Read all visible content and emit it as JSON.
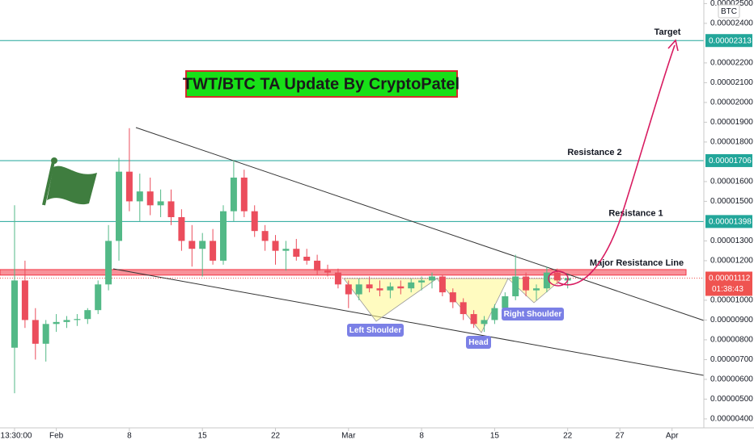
{
  "chart_data": {
    "type": "candlestick",
    "title": "TWT/BTC TA Update By CryptoPatel",
    "currency": "BTC",
    "categories": [
      "13:30:00",
      null,
      null,
      null,
      "Feb",
      null,
      null,
      null,
      null,
      null,
      null,
      "8",
      null,
      null,
      null,
      null,
      null,
      null,
      "15",
      null,
      null,
      null,
      null,
      null,
      null,
      "22",
      null,
      null,
      null,
      null,
      null,
      null,
      "Mar",
      null,
      null,
      null,
      null,
      null,
      null,
      "8",
      null,
      null,
      null,
      null,
      null,
      null,
      "15",
      null,
      null,
      null,
      null,
      null,
      null,
      "22",
      null,
      null,
      null,
      null,
      "27",
      null,
      null,
      null,
      null,
      "Apr",
      null
    ],
    "open": [
      7.6e-06,
      1.1e-05,
      9e-06,
      7.8e-06,
      8.8e-06,
      8.9e-06,
      9e-06,
      9.05e-06,
      9.5e-06,
      1.08e-05,
      1.3e-05,
      1.65e-05,
      1.5e-05,
      1.55e-05,
      1.48e-05,
      1.5e-05,
      1.42e-05,
      1.3e-05,
      1.26e-05,
      1.3e-05,
      1.2e-05,
      1.45e-05,
      1.62e-05,
      1.45e-05,
      1.35e-05,
      1.3e-05,
      1.25e-05,
      1.26e-05,
      1.22e-05,
      1.2e-05,
      1.15e-05,
      1.14e-05,
      1.08e-05,
      1.03e-05,
      1.08e-05,
      1.06e-05,
      1.05e-05,
      1.07e-05,
      1.06e-05,
      1.09e-05,
      1.1e-05,
      1.12e-05,
      1.04e-05,
      9.9e-06,
      9.3e-06,
      8.8e-06,
      9e-06,
      9.6e-06,
      1.02e-05,
      1.12e-05,
      1.05e-05,
      1.06e-05,
      1.14e-05,
      1.1e-05,
      null,
      null,
      null,
      null,
      null,
      null,
      null,
      null,
      null,
      null,
      null
    ],
    "high": [
      1.48e-05,
      1.2e-05,
      9.6e-06,
      9e-06,
      9.3e-06,
      9.2e-06,
      9.3e-06,
      9.6e-06,
      1.1e-05,
      1.38e-05,
      1.72e-05,
      1.87e-05,
      1.64e-05,
      1.62e-05,
      1.56e-05,
      1.56e-05,
      1.46e-05,
      1.38e-05,
      1.34e-05,
      1.36e-05,
      1.48e-05,
      1.71e-05,
      1.66e-05,
      1.48e-05,
      1.38e-05,
      1.33e-05,
      1.3e-05,
      1.31e-05,
      1.26e-05,
      1.23e-05,
      1.18e-05,
      1.16e-05,
      1.1e-05,
      1.11e-05,
      1.12e-05,
      1.1e-05,
      1.09e-05,
      1.1e-05,
      1.11e-05,
      1.12e-05,
      1.14e-05,
      1.13e-05,
      1.06e-05,
      1.01e-05,
      9.5e-06,
      9.2e-06,
      9.8e-06,
      1.04e-05,
      1.23e-05,
      1.14e-05,
      1.08e-05,
      1.17e-05,
      1.16e-05,
      1.13e-05,
      null,
      null,
      null,
      null,
      null,
      null,
      null,
      null,
      null,
      null,
      null
    ],
    "low": [
      5.3e-06,
      8.6e-06,
      7e-06,
      6.9e-06,
      8.4e-06,
      8.6e-06,
      8.7e-06,
      8.8e-06,
      9.3e-06,
      1.05e-05,
      1.2e-05,
      1.45e-05,
      1.4e-05,
      1.43e-05,
      1.42e-05,
      1.38e-05,
      1.25e-05,
      1.17e-05,
      1.12e-05,
      1.18e-05,
      1.18e-05,
      1.4e-05,
      1.42e-05,
      1.32e-05,
      1.25e-05,
      1.18e-05,
      1.15e-05,
      1.2e-05,
      1.18e-05,
      1.13e-05,
      1.12e-05,
      1.06e-05,
      9.6e-06,
      1e-05,
      1.04e-05,
      1.02e-05,
      1.01e-05,
      1.03e-05,
      1.04e-05,
      1.05e-05,
      1.06e-05,
      1.02e-05,
      9.6e-06,
      9e-06,
      8.6e-06,
      8.4e-06,
      8.8e-06,
      9.4e-06,
      1e-05,
      1.02e-05,
      1e-05,
      1.04e-05,
      1.08e-05,
      1.06e-05,
      null,
      null,
      null,
      null,
      null,
      null,
      null,
      null,
      null,
      null,
      null
    ],
    "close": [
      1.1e-05,
      9e-06,
      7.8e-06,
      8.8e-06,
      8.9e-06,
      9e-06,
      9.05e-06,
      9.5e-06,
      1.08e-05,
      1.3e-05,
      1.65e-05,
      1.5e-05,
      1.55e-05,
      1.48e-05,
      1.5e-05,
      1.42e-05,
      1.3e-05,
      1.26e-05,
      1.3e-05,
      1.2e-05,
      1.45e-05,
      1.62e-05,
      1.45e-05,
      1.35e-05,
      1.3e-05,
      1.25e-05,
      1.26e-05,
      1.22e-05,
      1.2e-05,
      1.15e-05,
      1.14e-05,
      1.08e-05,
      1.03e-05,
      1.08e-05,
      1.06e-05,
      1.05e-05,
      1.07e-05,
      1.06e-05,
      1.09e-05,
      1.1e-05,
      1.12e-05,
      1.04e-05,
      9.9e-06,
      9.3e-06,
      8.8e-06,
      9e-06,
      9.6e-06,
      1.02e-05,
      1.12e-05,
      1.05e-05,
      1.06e-05,
      1.14e-05,
      1.1e-05,
      1.112e-05,
      null,
      null,
      null,
      null,
      null,
      null,
      null,
      null,
      null,
      null,
      null
    ],
    "up_color": "#53b987",
    "down_color": "#eb4d5c",
    "ylim": [
      3.67e-06,
      2.518e-05
    ],
    "yticks": [
      {
        "value": 2.5e-05,
        "label": "0.00002500"
      },
      {
        "value": 2.4e-05,
        "label": "0.00002400"
      },
      {
        "value": 2.2e-05,
        "label": "0.00002200"
      },
      {
        "value": 2.1e-05,
        "label": "0.00002100"
      },
      {
        "value": 2e-05,
        "label": "0.00002000"
      },
      {
        "value": 1.9e-05,
        "label": "0.00001900"
      },
      {
        "value": 1.8e-05,
        "label": "0.00001800"
      },
      {
        "value": 1.6e-05,
        "label": "0.00001600"
      },
      {
        "value": 1.5e-05,
        "label": "0.00001500"
      },
      {
        "value": 1.3e-05,
        "label": "0.00001300"
      },
      {
        "value": 1.2e-05,
        "label": "0.00001200"
      },
      {
        "value": 1e-05,
        "label": "0.00001000"
      },
      {
        "value": 9e-06,
        "label": "0.00000900"
      },
      {
        "value": 8e-06,
        "label": "0.00000800"
      },
      {
        "value": 7e-06,
        "label": "0.00000700"
      },
      {
        "value": 6e-06,
        "label": "0.00000600"
      },
      {
        "value": 5e-06,
        "label": "0.00000500"
      },
      {
        "value": 4e-06,
        "label": "0.00000400"
      }
    ],
    "levels": [
      {
        "label": "Target",
        "value": 2.313e-05,
        "color": "#22a69a"
      },
      {
        "label": "Resistance 2",
        "value": 1.706e-05,
        "color": "#22a69a"
      },
      {
        "label": "Resistance 1",
        "value": 1.398e-05,
        "color": "#22a69a"
      }
    ],
    "resistance_zone": {
      "label": "Major Resistance Line",
      "range": [
        1.127e-05,
        1.155e-05
      ],
      "color": "#f23645"
    },
    "last_price": {
      "value": 1.112e-05,
      "countdown": "01:38:43",
      "color": "#ef5350"
    },
    "patterns": [
      "Left Shoulder",
      "Head",
      "Right Shoulder"
    ]
  }
}
